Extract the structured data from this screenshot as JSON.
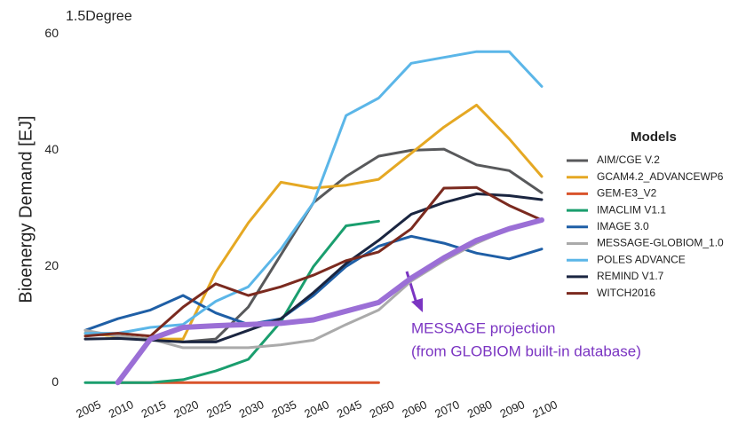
{
  "chart_data": {
    "type": "line",
    "title": "1.5Degree",
    "y_label": "Bioenergy Demand [EJ]",
    "legend_title": "Models",
    "legend": "right",
    "grid": false,
    "categories": [
      "2005",
      "2010",
      "2015",
      "2020",
      "2025",
      "2030",
      "2035",
      "2040",
      "2045",
      "2050",
      "2060",
      "2070",
      "2080",
      "2090",
      "2100"
    ],
    "ylim": [
      -1.5,
      61
    ],
    "yticks": [
      0,
      20,
      40,
      60
    ],
    "series": [
      {
        "name": "AIM/CGE V.2",
        "color": "#58595b",
        "values": [
          8.5,
          8,
          7.5,
          7,
          7.5,
          13,
          22,
          31,
          35.5,
          39,
          40,
          40.2,
          37.5,
          36.5,
          32.7
        ]
      },
      {
        "name": "GCAM4.2_ADVANCEWP6",
        "color": "#e5a823",
        "values": [
          8.5,
          8,
          7.5,
          7.5,
          19,
          27.5,
          34.5,
          33.5,
          34,
          35,
          39.5,
          44,
          47.8,
          42,
          35.5
        ]
      },
      {
        "name": "GEM-E3_V2",
        "color": "#d9532b",
        "values": [
          null,
          0,
          0,
          0,
          0,
          0,
          0,
          0,
          0,
          0,
          null,
          null,
          null,
          null,
          null
        ]
      },
      {
        "name": "IMACLIM V1.1",
        "color": "#1a9e6e",
        "values": [
          0,
          0,
          0,
          0.5,
          2,
          4,
          10.5,
          20,
          27,
          27.8,
          null,
          null,
          null,
          null,
          null
        ]
      },
      {
        "name": "IMAGE 3.0",
        "color": "#1f5fa6",
        "values": [
          9,
          11,
          12.5,
          15,
          12,
          10,
          11,
          15,
          20,
          23.5,
          25.2,
          24,
          22.3,
          21.3,
          23
        ]
      },
      {
        "name": "MESSAGE-GLOBIOM_1.0",
        "color": "#aaaaaa",
        "values": [
          9,
          8,
          7.5,
          6,
          6,
          6,
          6.5,
          7.3,
          10,
          12.5,
          17.5,
          21,
          24,
          26.5,
          28
        ]
      },
      {
        "name": "POLES ADVANCE",
        "color": "#5bb6e8",
        "values": [
          8.5,
          8.5,
          9.5,
          10,
          14,
          16.5,
          23,
          31,
          46,
          49,
          55,
          56,
          57,
          57,
          51
        ]
      },
      {
        "name": "REMIND V1.7",
        "color": "#1a2540",
        "values": [
          7.5,
          7.6,
          7.3,
          7,
          7,
          9,
          11,
          15.5,
          20.5,
          24.5,
          29,
          31,
          32.5,
          32.2,
          31.5
        ]
      },
      {
        "name": "WITCH2016",
        "color": "#7b2a1f",
        "values": [
          8,
          8.5,
          8,
          13,
          17,
          15,
          16.5,
          18.5,
          21,
          22.5,
          26.5,
          33.5,
          33.6,
          30.5,
          28
        ]
      }
    ],
    "projection": {
      "label_lines": [
        "MESSAGE projection",
        "(from GLOBIOM built-in database)"
      ],
      "color": "#9b6fd6",
      "values": [
        null,
        0,
        7.5,
        9.5,
        9.8,
        10,
        10.2,
        10.8,
        12.3,
        13.8,
        18,
        21.5,
        24.5,
        26.5,
        28
      ]
    }
  }
}
